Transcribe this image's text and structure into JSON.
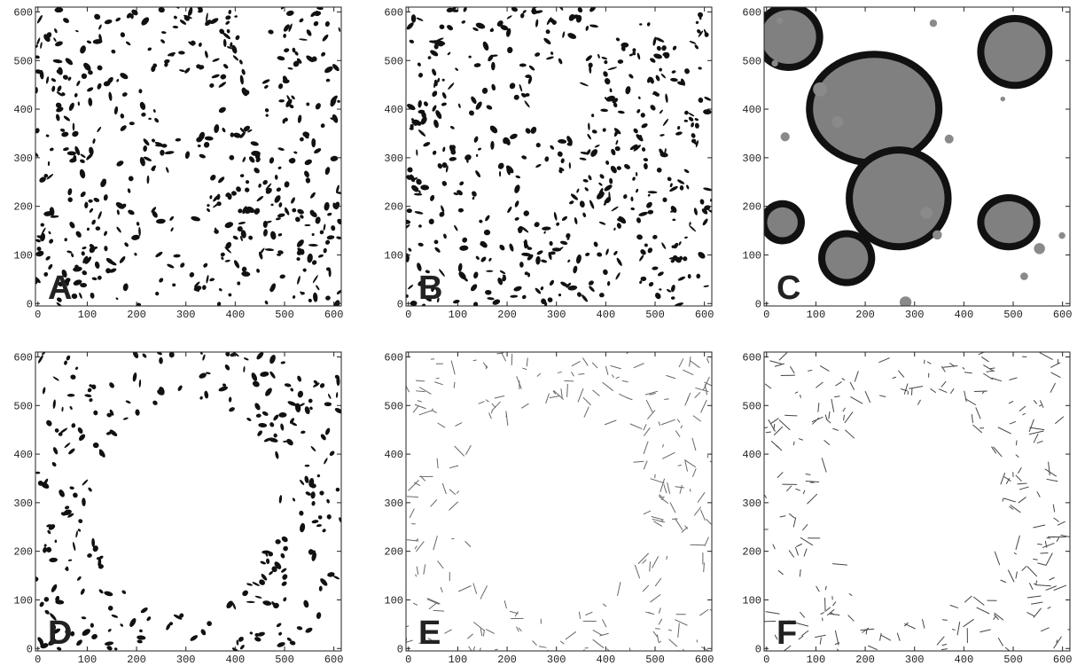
{
  "panels": [
    {
      "label": "A",
      "xlim": [
        -5,
        615
      ],
      "ylim": [
        -5,
        610
      ],
      "xticks": [
        0,
        100,
        200,
        300,
        400,
        500,
        600
      ],
      "yticks": [
        0,
        100,
        200,
        300,
        400,
        500,
        600
      ]
    },
    {
      "label": "B",
      "xlim": [
        -5,
        615
      ],
      "ylim": [
        -5,
        610
      ],
      "xticks": [
        0,
        100,
        200,
        300,
        400,
        500,
        600
      ],
      "yticks": [
        0,
        100,
        200,
        300,
        400,
        500,
        600
      ]
    },
    {
      "label": "C",
      "xlim": [
        -5,
        615
      ],
      "ylim": [
        -5,
        610
      ],
      "xticks": [
        0,
        100,
        200,
        300,
        400,
        500,
        600
      ],
      "yticks": [
        0,
        100,
        200,
        300,
        400,
        500,
        600
      ]
    },
    {
      "label": "D",
      "xlim": [
        -5,
        615
      ],
      "ylim": [
        -5,
        610
      ],
      "xticks": [
        0,
        100,
        200,
        300,
        400,
        500,
        600
      ],
      "yticks": [
        0,
        100,
        200,
        300,
        400,
        500,
        600
      ]
    },
    {
      "label": "E",
      "xlim": [
        -5,
        615
      ],
      "ylim": [
        -5,
        610
      ],
      "xticks": [
        0,
        100,
        200,
        300,
        400,
        500,
        600
      ],
      "yticks": [
        0,
        100,
        200,
        300,
        400,
        500,
        600
      ]
    },
    {
      "label": "F",
      "xlim": [
        -5,
        615
      ],
      "ylim": [
        -5,
        610
      ],
      "xticks": [
        0,
        100,
        200,
        300,
        400,
        500,
        600
      ],
      "yticks": [
        0,
        100,
        200,
        300,
        400,
        500,
        600
      ]
    }
  ]
}
